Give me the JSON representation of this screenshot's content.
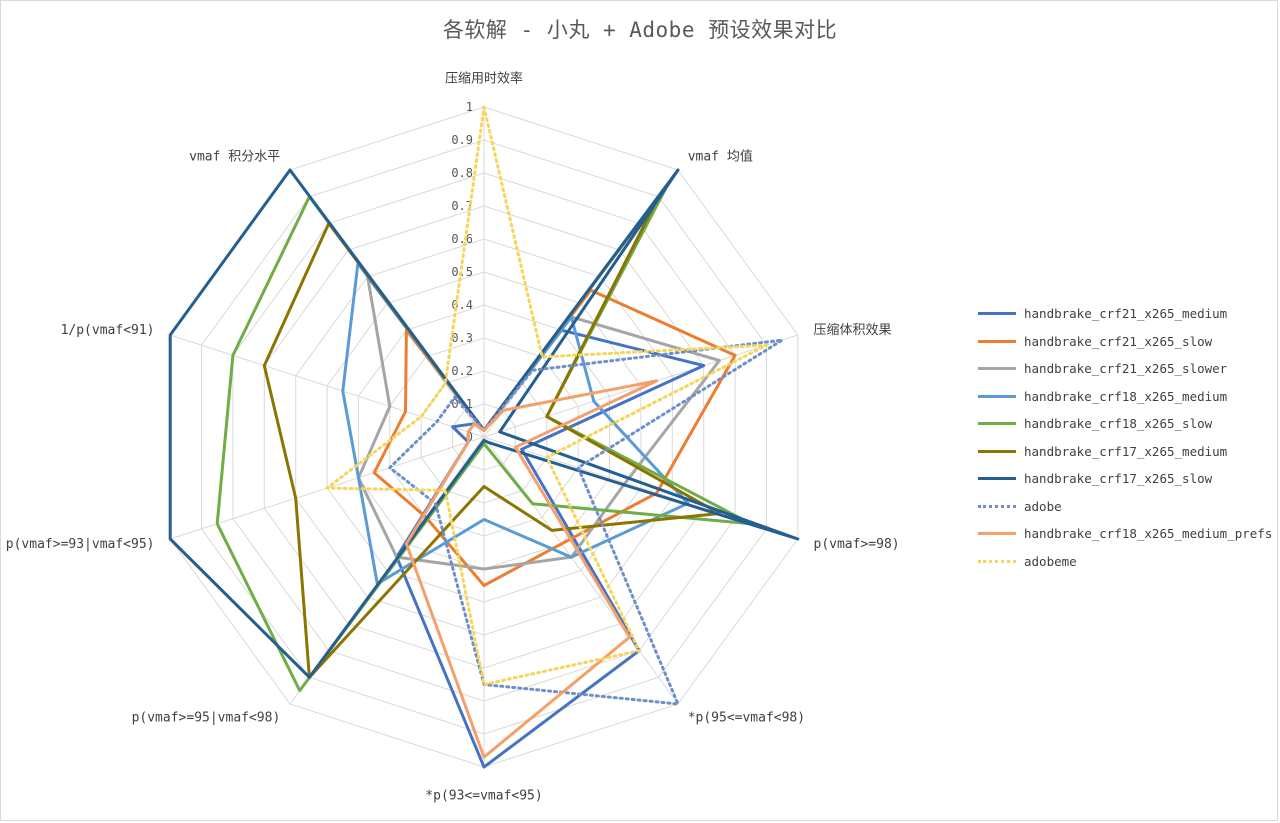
{
  "chart_data": {
    "type": "radar",
    "title": "各软解 - 小丸 + Adobe 预设效果对比",
    "axes": [
      "压缩用时效率",
      "vmaf 均值",
      "压缩体积效果",
      "p(vmaf>=98)",
      "*p(95<=vmaf<98)",
      "*p(93<=vmaf<95)",
      "p(vmaf>=95|vmaf<98)",
      "p(vmaf>=93|vmaf<95)",
      "1/p(vmaf<91)",
      "vmaf 积分水平"
    ],
    "rlim": [
      0,
      1
    ],
    "ticks": [
      "0",
      "0.1",
      "0.2",
      "0.3",
      "0.4",
      "0.5",
      "0.6",
      "0.7",
      "0.8",
      "0.9",
      "1"
    ],
    "grid": true,
    "legend_position": "right",
    "series": [
      {
        "name": "handbrake_crf21_x265_medium",
        "color": "#4472c4",
        "dash": "solid",
        "values": [
          0.02,
          0.4,
          0.7,
          0.12,
          0.8,
          1.0,
          0.45,
          0.05,
          0.1,
          0.05
        ]
      },
      {
        "name": "handbrake_crf21_x265_slow",
        "color": "#ed7d31",
        "dash": "solid",
        "values": [
          0.02,
          0.55,
          0.8,
          0.55,
          0.4,
          0.45,
          0.3,
          0.35,
          0.25,
          0.4
        ]
      },
      {
        "name": "handbrake_crf21_x265_slower",
        "color": "#a5a5a5",
        "dash": "solid",
        "values": [
          0.02,
          0.45,
          0.75,
          0.45,
          0.45,
          0.4,
          0.45,
          0.4,
          0.3,
          0.6
        ]
      },
      {
        "name": "handbrake_crf18_x265_medium",
        "color": "#5b9bd5",
        "dash": "solid",
        "values": [
          0.02,
          0.45,
          0.35,
          0.65,
          0.45,
          0.25,
          0.55,
          0.4,
          0.45,
          0.65
        ]
      },
      {
        "name": "handbrake_crf18_x265_slow",
        "color": "#70ad47",
        "dash": "solid",
        "values": [
          0.02,
          0.95,
          0.2,
          0.85,
          0.25,
          0.02,
          0.95,
          0.85,
          0.8,
          0.9
        ]
      },
      {
        "name": "handbrake_crf17_x265_medium",
        "color": "#8b7500",
        "dash": "solid",
        "values": [
          0.02,
          0.9,
          0.2,
          0.75,
          0.35,
          0.15,
          0.9,
          0.6,
          0.7,
          0.8
        ]
      },
      {
        "name": "handbrake_crf17_x265_slow",
        "color": "#255e91",
        "dash": "solid",
        "values": [
          0.02,
          1.0,
          0.05,
          1.0,
          0.02,
          0.01,
          0.9,
          1.0,
          1.0,
          1.0
        ]
      },
      {
        "name": "adobe",
        "color": "#6e8fc8",
        "dash": "dotted",
        "values": [
          0.02,
          0.25,
          0.95,
          0.3,
          1.0,
          0.75,
          0.25,
          0.3,
          0.15,
          0.15
        ]
      },
      {
        "name": "handbrake_crf18_x265_medium_prefs",
        "color": "#f4a06c",
        "dash": "solid",
        "values": [
          0.02,
          0.1,
          0.55,
          0.1,
          0.75,
          0.97,
          0.4,
          0.05,
          0.05,
          0.05
        ]
      },
      {
        "name": "adobeme",
        "color": "#f5d55a",
        "dash": "dotted",
        "values": [
          1.0,
          0.3,
          0.9,
          0.2,
          0.8,
          0.75,
          0.2,
          0.5,
          0.2,
          0.2
        ]
      }
    ]
  }
}
